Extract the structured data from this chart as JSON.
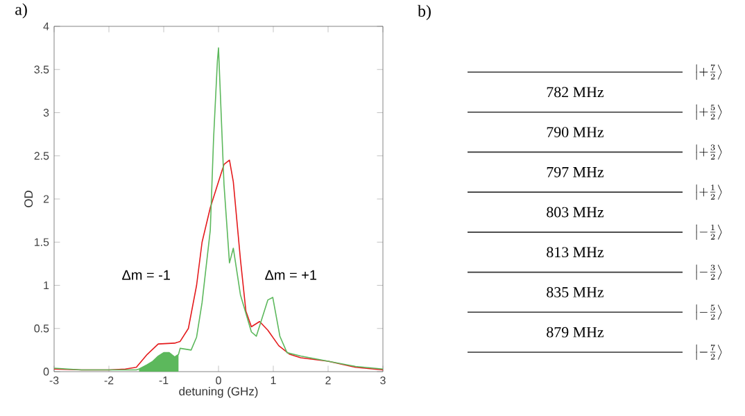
{
  "chart_data": {
    "type": "line",
    "title": "a)",
    "xlabel": "detuning (GHz)",
    "ylabel": "OD",
    "xlim": [
      -3,
      3
    ],
    "ylim": [
      0,
      4
    ],
    "xticks": [
      -3,
      -2,
      -1,
      0,
      1,
      2,
      3
    ],
    "yticks": [
      0,
      0.5,
      1,
      1.5,
      2,
      2.5,
      3,
      3.5,
      4
    ],
    "series": [
      {
        "type": "area",
        "color": "#5cb85c",
        "x": [
          -1.45,
          -1.3,
          -1.2,
          -1.1,
          -1.0,
          -0.9,
          -0.8,
          -0.73
        ],
        "values": [
          0.03,
          0.08,
          0.12,
          0.18,
          0.22,
          0.22,
          0.17,
          0.2
        ]
      },
      {
        "color": "#e41a1c",
        "x": [
          -3,
          -2.5,
          -2,
          -1.7,
          -1.5,
          -1.3,
          -1.1,
          -0.8,
          -0.7,
          -0.55,
          -0.4,
          -0.3,
          -0.15,
          0,
          0.1,
          0.2,
          0.27,
          0.4,
          0.5,
          0.6,
          0.75,
          0.9,
          1.1,
          1.3,
          1.5,
          2,
          2.5,
          3
        ],
        "values": [
          0.03,
          0.02,
          0.02,
          0.03,
          0.05,
          0.2,
          0.32,
          0.33,
          0.35,
          0.5,
          1.0,
          1.5,
          1.9,
          2.2,
          2.4,
          2.45,
          2.2,
          1.3,
          0.7,
          0.52,
          0.58,
          0.48,
          0.3,
          0.2,
          0.16,
          0.12,
          0.05,
          0.02
        ]
      },
      {
        "color": "#5cb85c",
        "x": [
          -3,
          -2.5,
          -2,
          -1.5,
          -1.45,
          -1.3,
          -1.2,
          -1.1,
          -1.0,
          -0.9,
          -0.8,
          -0.73,
          -0.7,
          -0.5,
          -0.4,
          -0.3,
          -0.15,
          -0.09,
          -0.02,
          0.0,
          0.1,
          0.2,
          0.27,
          0.4,
          0.6,
          0.69,
          0.9,
          0.99,
          1.12,
          1.25,
          1.5,
          2.0,
          2.5,
          3
        ],
        "values": [
          0.04,
          0.02,
          0.02,
          0.02,
          0.03,
          0.08,
          0.12,
          0.18,
          0.22,
          0.22,
          0.17,
          0.2,
          0.27,
          0.25,
          0.4,
          0.8,
          1.64,
          2.7,
          3.6,
          3.75,
          2.17,
          1.26,
          1.43,
          0.89,
          0.46,
          0.41,
          0.83,
          0.86,
          0.41,
          0.22,
          0.18,
          0.12,
          0.06,
          0.03
        ]
      }
    ],
    "annotations": [
      "Δm = -1",
      "Δm = +1",
      "b)",
      "\\left|+\\tfrac{7}{2}\\right\\rangle",
      "782 MHz",
      "\\left|+\\tfrac{5}{2}\\right\\rangle",
      "790 MHz",
      "\\left|+\\tfrac{3}{2}\\right\\rangle",
      "797 MHz",
      "\\left|+\\tfrac{1}{2}\\right\\rangle",
      "803 MHz",
      "\\left|-\\tfrac{1}{2}\\right\\rangle",
      "813 MHz",
      "\\left|-\\tfrac{3}{2}\\right\\rangle",
      "835 MHz",
      "\\left|-\\tfrac{5}{2}\\right\\rangle",
      "879 MHz",
      "\\left|-\\tfrac{7}{2}\\right\\rangle"
    ]
  }
}
